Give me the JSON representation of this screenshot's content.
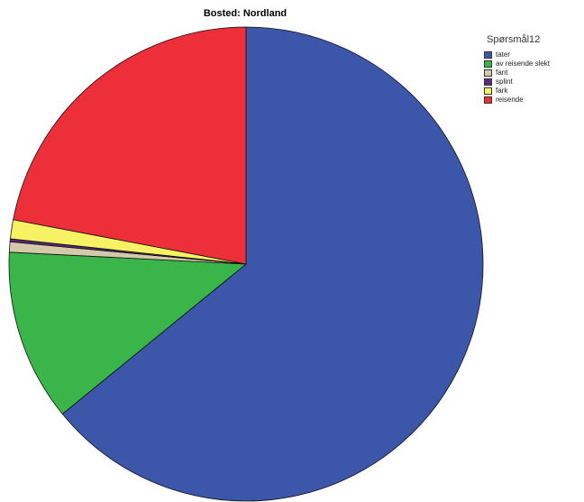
{
  "chart_data": {
    "type": "pie",
    "title": "Bosted: Nordland",
    "legend_title": "Spørsmål12",
    "legend_position": "top-right",
    "start_angle_deg": 0,
    "direction": "clockwise",
    "slices": [
      {
        "label": "tater",
        "value": 64.1,
        "color": "#3c56aa"
      },
      {
        "label": "av reisende slekt",
        "value": 11.7,
        "color": "#39b54a"
      },
      {
        "label": "fant",
        "value": 0.7,
        "color": "#d4c9a8"
      },
      {
        "label": "splint",
        "value": 0.2,
        "color": "#5b2a7a"
      },
      {
        "label": "fark",
        "value": 1.3,
        "color": "#f7f264"
      },
      {
        "label": "reisende",
        "value": 22.0,
        "color": "#ed2f3a"
      }
    ]
  }
}
